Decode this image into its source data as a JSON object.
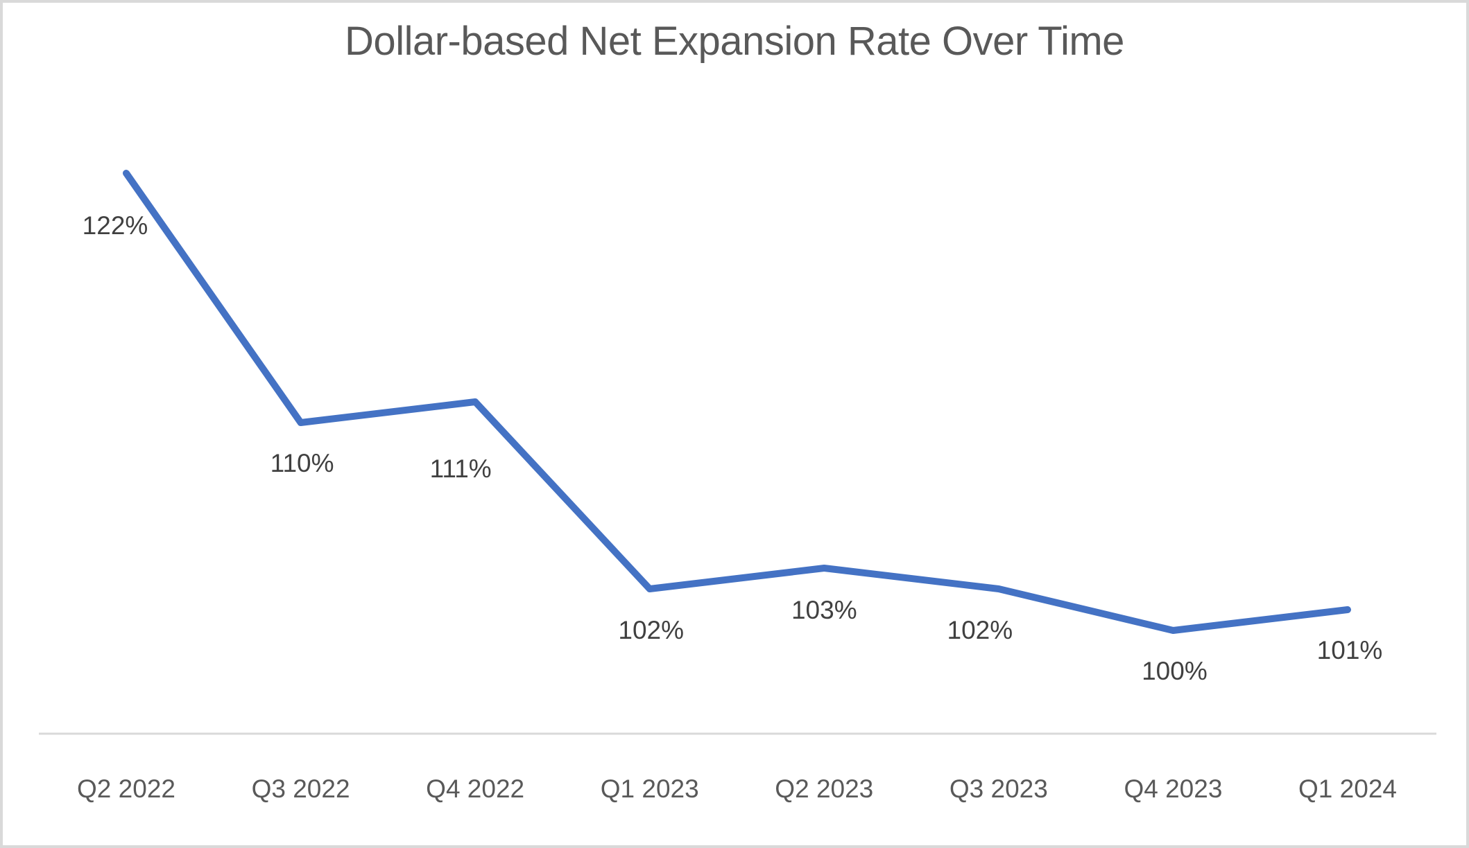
{
  "window": {
    "background": "#ffffff",
    "frame_border_color": "#d9d9d9"
  },
  "chart_data": {
    "type": "line",
    "title": "Dollar-based Net Expansion Rate Over Time",
    "categories": [
      "Q2 2022",
      "Q3 2022",
      "Q4 2022",
      "Q1 2023",
      "Q2 2023",
      "Q3 2023",
      "Q4 2023",
      "Q1 2024"
    ],
    "series": [
      {
        "name": "Dollar-based Net Expansion Rate",
        "values": [
          122,
          110,
          111,
          102,
          103,
          102,
          100,
          101
        ],
        "data_labels": [
          "122%",
          "110%",
          "111%",
          "102%",
          "103%",
          "102%",
          "100%",
          "101%"
        ]
      }
    ],
    "xlabel": "",
    "ylabel": "",
    "y_axis_visible": false,
    "x_axis_line_visible": true,
    "gridlines": false,
    "legend": "none",
    "data_labels_position": "below",
    "colors": {
      "line": "#4472C4",
      "title_text": "#595959",
      "data_label_text": "#404040",
      "axis_label_text": "#595959",
      "axis_line": "#D9D9D9"
    }
  }
}
